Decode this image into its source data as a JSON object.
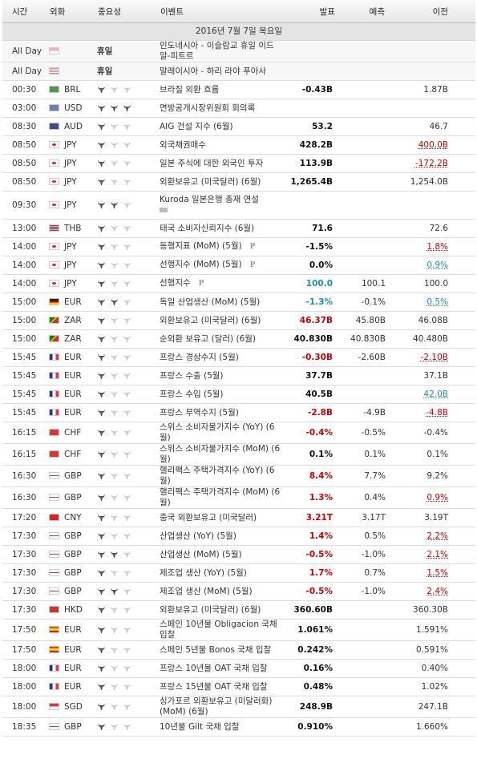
{
  "header": {
    "columns": [
      "시간",
      "외화",
      "중요성",
      "이벤트",
      "발표",
      "예측",
      "이전"
    ]
  },
  "date": "2016년 7월 7일 목요일",
  "rows": [
    {
      "time": "All Day",
      "currency": "",
      "importance": "휴일",
      "event": "인도네시아 - 이슬람교 휴일 이드 알-피트르"
    },
    {
      "time": "All Day",
      "currency": "",
      "importance": "휴일",
      "event": "말레이시아 - 하리 라야 푸아사"
    },
    {
      "time": "00:30",
      "currency": "BRL",
      "importance": 1,
      "event": "브라질 외환 흐름",
      "actual": "-0.43B",
      "previous": "1.87B"
    },
    {
      "time": "03:00",
      "currency": "USD",
      "importance": 3,
      "event": "연방공개시장위원회 회의록"
    },
    {
      "time": "08:30",
      "currency": "AUD",
      "importance": 1,
      "event": "AIG 건설 지수 (6월)",
      "actual": "53.2",
      "previous": "46.7"
    },
    {
      "time": "08:50",
      "currency": "JPY",
      "importance": 1,
      "event": "외국채권매수",
      "actual": "428.2B",
      "previous": "400.0B",
      "previous_color": "red"
    },
    {
      "time": "08:50",
      "currency": "JPY",
      "importance": 1,
      "event": "일본 주식에 대한 외국인 투자",
      "actual": "113.9B",
      "previous": "-172.2B",
      "previous_color": "red"
    },
    {
      "time": "08:50",
      "currency": "JPY",
      "importance": 1,
      "event": "외환보유고 (미국달러) (6월)",
      "actual": "1,265.4B",
      "previous": "1,254.0B"
    },
    {
      "time": "09:30",
      "currency": "JPY",
      "importance": 2,
      "event": "Kuroda 일본은행 총재 연설"
    },
    {
      "time": "13:00",
      "currency": "THB",
      "importance": 1,
      "event": "태국 소비자신뢰지수 (6월)",
      "actual": "71.6",
      "previous": "72.6"
    },
    {
      "time": "14:00",
      "currency": "JPY",
      "importance": 1,
      "event": "동행지표 (MoM) (5월)",
      "marker": "P",
      "actual": "-1.5%",
      "previous": "1.8%",
      "previous_color": "red"
    },
    {
      "time": "14:00",
      "currency": "JPY",
      "importance": 1,
      "event": "선행지수 (MoM) (5월)",
      "marker": "P",
      "actual": "0.0%",
      "previous": "0.9%",
      "previous_color": "teal"
    },
    {
      "time": "14:00",
      "currency": "JPY",
      "importance": 1,
      "event": "선행지수",
      "marker": "P",
      "actual": "100.0",
      "actual_color": "teal",
      "forecast": "100.1",
      "previous": "100.0"
    },
    {
      "time": "15:00",
      "currency": "EUR",
      "importance": 2,
      "event": "독일 산업생산 (MoM) (5월)",
      "actual": "-1.3%",
      "actual_color": "teal",
      "forecast": "-0.1%",
      "previous": "0.5%",
      "previous_color": "teal"
    },
    {
      "time": "15:00",
      "currency": "ZAR",
      "importance": 1,
      "event": "외환보유고 (미국달러) (6월)",
      "actual": "46.37B",
      "actual_color": "red",
      "forecast": "45.80B",
      "previous": "46.08B"
    },
    {
      "time": "15:00",
      "currency": "ZAR",
      "importance": 1,
      "event": "순외환 보유고 (달러) (6월)",
      "actual": "40.830B",
      "forecast": "40.830B",
      "previous": "40.480B"
    },
    {
      "time": "15:45",
      "currency": "EUR",
      "importance": 1,
      "event": "프랑스 경상수지 (5월)",
      "actual": "-0.30B",
      "actual_color": "red",
      "forecast": "-2.60B",
      "previous": "-2.10B",
      "previous_color": "red"
    },
    {
      "time": "15:45",
      "currency": "EUR",
      "importance": 1,
      "event": "프랑스 수출 (5월)",
      "actual": "37.7B",
      "previous": "37.1B"
    },
    {
      "time": "15:45",
      "currency": "EUR",
      "importance": 1,
      "event": "프랑스 수입 (5월)",
      "actual": "40.5B",
      "previous": "42.0B",
      "previous_color": "teal"
    },
    {
      "time": "15:45",
      "currency": "EUR",
      "importance": 1,
      "event": "프랑스 무역수지 (5월)",
      "actual": "-2.8B",
      "actual_color": "red",
      "forecast": "-4.9B",
      "previous": "-4.8B",
      "previous_color": "red"
    },
    {
      "time": "16:15",
      "currency": "CHF",
      "importance": 1,
      "event": "스위스 소비자물가지수 (YoY) (6월)",
      "actual": "-0.4%",
      "actual_color": "red",
      "forecast": "-0.5%",
      "previous": "-0.4%"
    },
    {
      "time": "16:15",
      "currency": "CHF",
      "importance": 1,
      "event": "스위스 소비자물가지수 (MoM) (6월)",
      "actual": "0.1%",
      "forecast": "0.1%",
      "previous": "0.1%"
    },
    {
      "time": "16:30",
      "currency": "GBP",
      "importance": 1,
      "event": "핼리팩스 주택가격지수 (YoY) (6월)",
      "actual": "8.4%",
      "actual_color": "red",
      "forecast": "7.7%",
      "previous": "9.2%"
    },
    {
      "time": "16:30",
      "currency": "GBP",
      "importance": 1,
      "event": "핼리팩스 주택가격지수 (MoM) (6월)",
      "actual": "1.3%",
      "actual_color": "red",
      "forecast": "0.4%",
      "previous": "0.9%",
      "previous_color": "red"
    },
    {
      "time": "17:20",
      "currency": "CNY",
      "importance": 1,
      "event": "중국 외환보유고 (미국달러)",
      "actual": "3.21T",
      "actual_color": "red",
      "forecast": "3.17T",
      "previous": "3.19T"
    },
    {
      "time": "17:30",
      "currency": "GBP",
      "importance": 1,
      "event": "산업생산 (YoY) (5월)",
      "actual": "1.4%",
      "actual_color": "red",
      "forecast": "0.5%",
      "previous": "2.2%",
      "previous_color": "red"
    },
    {
      "time": "17:30",
      "currency": "GBP",
      "importance": 2,
      "event": "산업생산 (MoM) (5월)",
      "actual": "-0.5%",
      "actual_color": "red",
      "forecast": "-1.0%",
      "previous": "2.1%",
      "previous_color": "red"
    },
    {
      "time": "17:30",
      "currency": "GBP",
      "importance": 1,
      "event": "제조업 생산 (YoY) (5월)",
      "actual": "1.7%",
      "actual_color": "red",
      "forecast": "0.7%",
      "previous": "1.5%",
      "previous_color": "red"
    },
    {
      "time": "17:30",
      "currency": "GBP",
      "importance": 2,
      "event": "제조업 생산 (MoM) (5월)",
      "actual": "-0.5%",
      "actual_color": "red",
      "forecast": "-1.0%",
      "previous": "2.4%",
      "previous_color": "red"
    },
    {
      "time": "17:30",
      "currency": "HKD",
      "importance": 1,
      "event": "외환보유고 (미국달러) (6월)",
      "actual": "360.60B",
      "previous": "360.30B"
    },
    {
      "time": "17:50",
      "currency": "EUR",
      "importance": 1,
      "event": "스페인 10년물 Obligacion 국채 입찰",
      "actual": "1.061%",
      "previous": "1.591%"
    },
    {
      "time": "17:50",
      "currency": "EUR",
      "importance": 1,
      "event": "스페인 5년물 Bonos 국채 입찰",
      "actual": "0.242%",
      "previous": "0.591%"
    },
    {
      "time": "18:00",
      "currency": "EUR",
      "importance": 1,
      "event": "프랑스 10년물 OAT 국채 입찰",
      "actual": "0.16%",
      "previous": "0.40%"
    },
    {
      "time": "18:00",
      "currency": "EUR",
      "importance": 1,
      "event": "프랑스 15년물 OAT 국채 입찰",
      "actual": "0.48%",
      "previous": "1.02%"
    },
    {
      "time": "18:00",
      "currency": "SGD",
      "importance": 1,
      "event": "싱가포르 외환보유고 (미달러화) (MoM) (6월)",
      "actual": "248.9B",
      "previous": "247.1B"
    },
    {
      "time": "18:35",
      "currency": "GBP",
      "importance": 1,
      "event": "10년물 Gilt 국채 입찰",
      "actual": "0.910%",
      "previous": "1.660%"
    }
  ]
}
